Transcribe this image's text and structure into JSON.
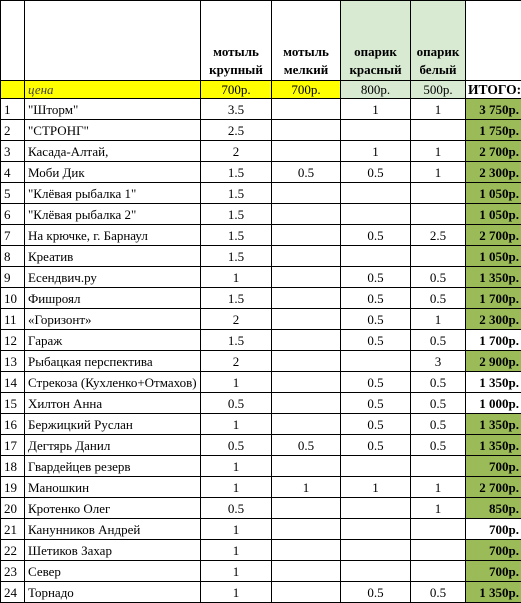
{
  "header": {
    "col_num": "",
    "col_name": "",
    "motyl_krupny": "мотыль крупный",
    "motyl_melky": "мотыль мелкий",
    "oparik_krasny": "опарик красный",
    "oparik_bely": "опарик белый",
    "col_total": ""
  },
  "price_row": {
    "label": "цена",
    "motyl_krupny": "700р.",
    "motyl_melky": "700р.",
    "oparik_krasny": "800р.",
    "oparik_bely": "500р.",
    "total_label": "ИТОГО:"
  },
  "colors": {
    "price_bg": "#ffff00",
    "oparik_header_bg": "#d9ead3",
    "total_green": "#9bbb59"
  },
  "rows": [
    {
      "n": "1",
      "name": "\"Шторм\"",
      "mk": "3.5",
      "mm": "",
      "ok": "1",
      "ob": "1",
      "total": "3 750р.",
      "green": true
    },
    {
      "n": "2",
      "name": "\"СТРОНГ\"",
      "mk": "2.5",
      "mm": "",
      "ok": "",
      "ob": "",
      "total": "1 750р.",
      "green": true
    },
    {
      "n": "3",
      "name": "Касада-Алтай,",
      "mk": "2",
      "mm": "",
      "ok": "1",
      "ob": "1",
      "total": "2 700р.",
      "green": true
    },
    {
      "n": "4",
      "name": "Моби Дик",
      "mk": "1.5",
      "mm": "0.5",
      "ok": "0.5",
      "ob": "1",
      "total": "2 300р.",
      "green": true
    },
    {
      "n": "5",
      "name": "\"Клёвая рыбалка 1\"",
      "mk": "1.5",
      "mm": "",
      "ok": "",
      "ob": "",
      "total": "1 050р.",
      "green": true
    },
    {
      "n": "6",
      "name": "\"Клёвая рыбалка 2\"",
      "mk": "1.5",
      "mm": "",
      "ok": "",
      "ob": "",
      "total": "1 050р.",
      "green": true
    },
    {
      "n": "7",
      "name": "На крючке, г. Барнаул",
      "mk": "1.5",
      "mm": "",
      "ok": "0.5",
      "ob": "2.5",
      "total": "2 700р.",
      "green": true
    },
    {
      "n": "8",
      "name": "Креатив",
      "mk": "1.5",
      "mm": "",
      "ok": "",
      "ob": "",
      "total": "1 050р.",
      "green": true
    },
    {
      "n": "9",
      "name": "Есендвич.ру",
      "mk": "1",
      "mm": "",
      "ok": "0.5",
      "ob": "0.5",
      "total": "1 350р.",
      "green": true
    },
    {
      "n": "10",
      "name": "Фишроял",
      "mk": "1.5",
      "mm": "",
      "ok": "0.5",
      "ob": "0.5",
      "total": "1 700р.",
      "green": true
    },
    {
      "n": "11",
      "name": "«Горизонт»",
      "mk": "2",
      "mm": "",
      "ok": "0.5",
      "ob": "1",
      "total": "2 300р.",
      "green": true
    },
    {
      "n": "12",
      "name": "Гараж",
      "mk": "1.5",
      "mm": "",
      "ok": "0.5",
      "ob": "0.5",
      "total": "1 700р.",
      "green": false
    },
    {
      "n": "13",
      "name": "Рыбацкая перспектива",
      "mk": "2",
      "mm": "",
      "ok": "",
      "ob": "3",
      "total": "2 900р.",
      "green": true
    },
    {
      "n": "14",
      "name": "Стрекоза (Кухленко+Отмахов)",
      "mk": "1",
      "mm": "",
      "ok": "0.5",
      "ob": "0.5",
      "total": "1 350р.",
      "green": false
    },
    {
      "n": "15",
      "name": "Хилтон Анна",
      "mk": "0.5",
      "mm": "",
      "ok": "0.5",
      "ob": "0.5",
      "total": "1 000р.",
      "green": false
    },
    {
      "n": "16",
      "name": "Бержицкий Руслан",
      "mk": "1",
      "mm": "",
      "ok": "0.5",
      "ob": "0.5",
      "total": "1 350р.",
      "green": true
    },
    {
      "n": "17",
      "name": "Дегтярь Данил",
      "mk": "0.5",
      "mm": "0.5",
      "ok": "0.5",
      "ob": "0.5",
      "total": "1 350р.",
      "green": true
    },
    {
      "n": "18",
      "name": "Гвардейцев резерв",
      "mk": "1",
      "mm": "",
      "ok": "",
      "ob": "",
      "total": "700р.",
      "green": true
    },
    {
      "n": "19",
      "name": "Маношкин",
      "mk": "1",
      "mm": "1",
      "ok": "1",
      "ob": "1",
      "total": "2 700р.",
      "green": true
    },
    {
      "n": "20",
      "name": "Кротенко Олег",
      "mk": "0.5",
      "mm": "",
      "ok": "",
      "ob": "1",
      "total": "850р.",
      "green": true
    },
    {
      "n": "21",
      "name": "Канунников Андрей",
      "mk": "1",
      "mm": "",
      "ok": "",
      "ob": "",
      "total": "700р.",
      "green": false
    },
    {
      "n": "22",
      "name": "Шетиков Захар",
      "mk": "1",
      "mm": "",
      "ok": "",
      "ob": "",
      "total": "700р.",
      "green": true
    },
    {
      "n": "23",
      "name": "Север",
      "mk": "1",
      "mm": "",
      "ok": "",
      "ob": "",
      "total": "700р.",
      "green": true
    },
    {
      "n": "24",
      "name": "Торнадо",
      "mk": "1",
      "mm": "",
      "ok": "0.5",
      "ob": "0.5",
      "total": "1 350р.",
      "green": true
    }
  ]
}
